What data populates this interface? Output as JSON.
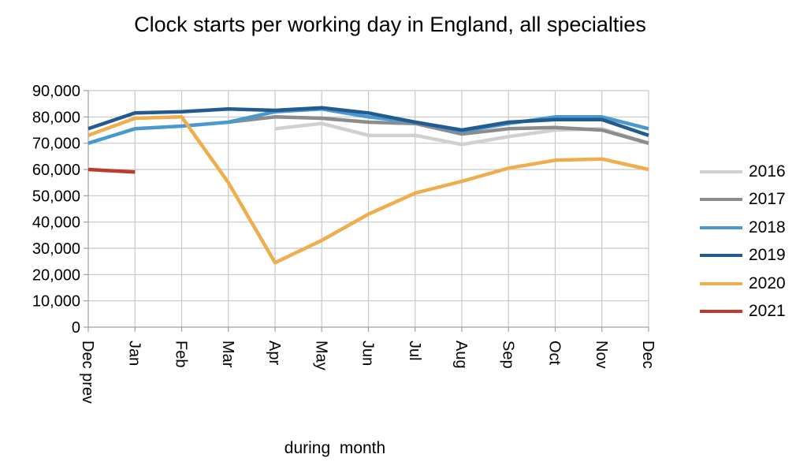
{
  "chart_data": {
    "type": "line",
    "title": "Clock starts per working day in England, all specialties",
    "xlabel": "during  month",
    "ylabel": "",
    "categories": [
      "Dec prev",
      "Jan",
      "Feb",
      "Mar",
      "Apr",
      "May",
      "Jun",
      "Jul",
      "Aug",
      "Sep",
      "Oct",
      "Nov",
      "Dec"
    ],
    "ylim": [
      0,
      90000
    ],
    "yticks": [
      "0",
      "10,000",
      "20,000",
      "30,000",
      "40,000",
      "50,000",
      "60,000",
      "70,000",
      "80,000",
      "90,000"
    ],
    "grid": true,
    "legend_position": "right",
    "series": [
      {
        "name": "2016",
        "color": "#d0d0d0",
        "values": [
          null,
          null,
          null,
          null,
          75500,
          77500,
          73000,
          73000,
          69500,
          72500,
          75000,
          75500,
          70000
        ]
      },
      {
        "name": "2017",
        "color": "#8c8c8c",
        "values": [
          null,
          null,
          null,
          78000,
          80000,
          79500,
          78000,
          77500,
          73500,
          75500,
          76000,
          75000,
          70000
        ]
      },
      {
        "name": "2018",
        "color": "#4a98d0",
        "values": [
          70000,
          75500,
          76500,
          78000,
          82000,
          83000,
          80000,
          78000,
          74500,
          77500,
          80000,
          80000,
          75500
        ]
      },
      {
        "name": "2019",
        "color": "#235b8e",
        "values": [
          75500,
          81500,
          82000,
          83000,
          82500,
          83500,
          81500,
          78000,
          75000,
          78000,
          79000,
          79000,
          73000
        ]
      },
      {
        "name": "2020",
        "color": "#f0ad4e",
        "values": [
          73000,
          79500,
          80000,
          55000,
          24500,
          33000,
          43000,
          51000,
          55500,
          60500,
          63500,
          64000,
          60000
        ]
      },
      {
        "name": "2021",
        "color": "#c0392b",
        "values": [
          60000,
          59000,
          null,
          null,
          null,
          null,
          null,
          null,
          null,
          null,
          null,
          null,
          null
        ]
      }
    ]
  }
}
